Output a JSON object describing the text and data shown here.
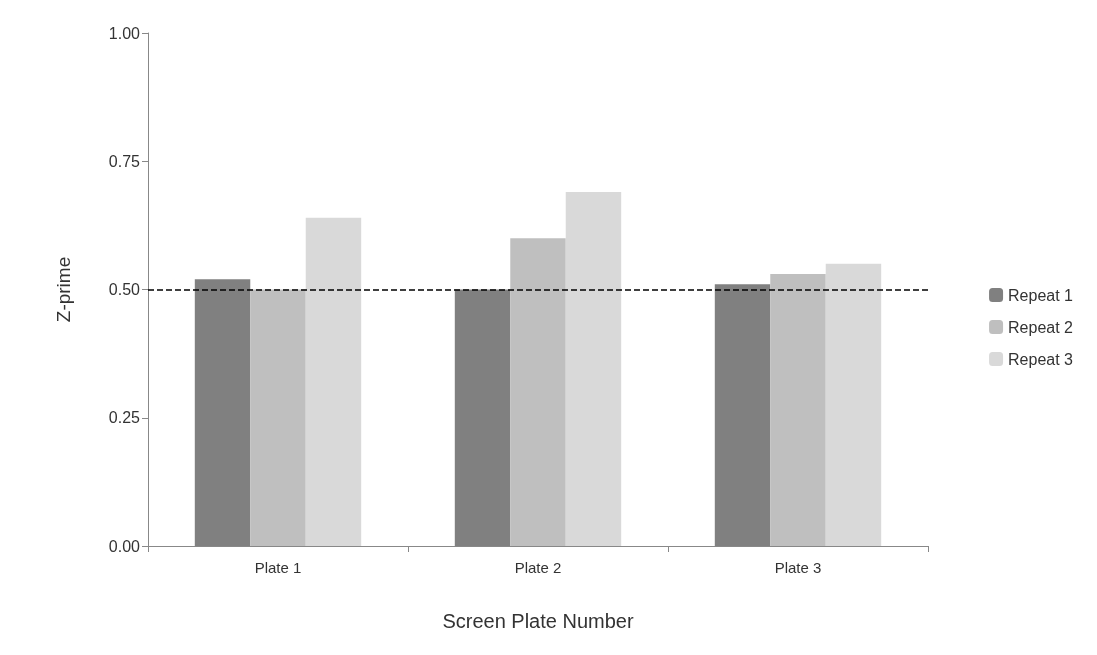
{
  "chart_data": {
    "type": "bar",
    "xlabel": "Screen Plate Number",
    "ylabel": "Z-prime",
    "categories": [
      "Plate 1",
      "Plate 2",
      "Plate 3"
    ],
    "series": [
      {
        "name": "Repeat 1",
        "color": "#808080",
        "values": [
          0.52,
          0.5,
          0.51
        ]
      },
      {
        "name": "Repeat 2",
        "color": "#bfbfbf",
        "values": [
          0.5,
          0.6,
          0.53
        ]
      },
      {
        "name": "Repeat 3",
        "color": "#d9d9d9",
        "values": [
          0.64,
          0.69,
          0.55
        ]
      }
    ],
    "ylim": [
      0,
      1
    ],
    "yticks": [
      {
        "value": 0,
        "label": "0.00"
      },
      0.25,
      {
        "value": 0.5,
        "label": "0.50"
      },
      0.75,
      {
        "value": 1,
        "label": "1.00"
      }
    ],
    "grid": false,
    "legend": "right",
    "ref_lines": [
      {
        "axis": "y",
        "value": 0.5,
        "color": "#000000",
        "line_style": "dashed"
      }
    ]
  }
}
